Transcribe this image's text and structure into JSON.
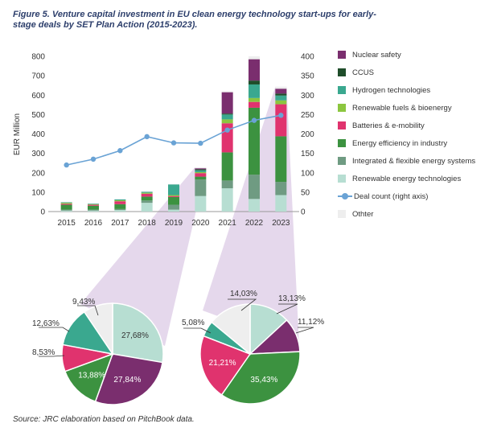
{
  "figure": {
    "title": "Figure 5. Venture capital investment in EU clean energy technology start-ups for early-stage deals by SET Plan Action (2015-2023).",
    "source": "Source: JRC elaboration based on PitchBook data."
  },
  "colors": {
    "Nuclear safety": "#7a2e6e",
    "CCUS": "#1f4d2a",
    "Hydrogen technologies": "#3aa88f",
    "Renewable fuels & bioenergy": "#8cc63f",
    "Batteries & e-mobility": "#e0336e",
    "Energy efficiency in industry": "#3c9240",
    "Integrated & flexible energy systems": "#6f9b82",
    "Renewable energy technologies": "#b7ded2",
    "Deal count (right axis)": "#6aa3d5",
    "Othter": "#eeeeee"
  },
  "chart_data": [
    {
      "type": "bar",
      "stacked": true,
      "ylabel": "EUR Million",
      "ylim": [
        0,
        800
      ],
      "y_ticks": [
        0,
        100,
        200,
        300,
        400,
        500,
        600,
        700,
        800
      ],
      "y2lim": [
        0,
        400
      ],
      "y2_ticks": [
        0,
        50,
        100,
        150,
        200,
        250,
        300,
        350,
        400
      ],
      "categories": [
        "2015",
        "2016",
        "2017",
        "2018",
        "2019",
        "2020",
        "2021",
        "2022",
        "2023"
      ],
      "series": [
        {
          "name": "Renewable energy technologies",
          "values": [
            5,
            5,
            8,
            45,
            10,
            80,
            120,
            65,
            85
          ]
        },
        {
          "name": "Integrated & flexible energy systems",
          "values": [
            5,
            5,
            5,
            12,
            25,
            85,
            40,
            125,
            68
          ]
        },
        {
          "name": "Energy efficiency in industry",
          "values": [
            25,
            20,
            25,
            20,
            40,
            15,
            145,
            345,
            235
          ]
        },
        {
          "name": "Batteries & e-mobility",
          "values": [
            5,
            5,
            15,
            15,
            5,
            18,
            150,
            30,
            165
          ]
        },
        {
          "name": "Renewable fuels & bioenergy",
          "values": [
            5,
            3,
            5,
            5,
            5,
            5,
            20,
            20,
            20
          ]
        },
        {
          "name": "Hydrogen technologies",
          "values": [
            3,
            3,
            5,
            5,
            55,
            10,
            25,
            70,
            25
          ]
        },
        {
          "name": "CCUS",
          "values": [
            0,
            0,
            0,
            0,
            0,
            5,
            5,
            20,
            10
          ]
        },
        {
          "name": "Nuclear safety",
          "values": [
            0,
            0,
            0,
            0,
            0,
            5,
            110,
            110,
            25
          ]
        },
        {
          "name": "Othter",
          "values": [
            2,
            2,
            2,
            3,
            2,
            5,
            5,
            15,
            10
          ]
        }
      ],
      "line_series": {
        "name": "Deal count (right axis)",
        "axis": "right",
        "values": [
          120,
          135,
          157,
          193,
          177,
          176,
          210,
          235,
          248
        ]
      }
    },
    {
      "type": "pie",
      "year": "2020",
      "slices": [
        {
          "name": "Renewable energy technologies",
          "value": 27.68,
          "label": "27,68%"
        },
        {
          "name": "Nuclear safety",
          "value": 27.84,
          "label": "27,84%"
        },
        {
          "name": "Energy efficiency in industry",
          "value": 13.88,
          "label": "13,88%"
        },
        {
          "name": "Batteries & e-mobility",
          "value": 8.53,
          "label": "8,53%"
        },
        {
          "name": "Hydrogen technologies",
          "value": 12.63,
          "label": "12,63%"
        },
        {
          "name": "Othter",
          "value": 9.43,
          "label": "9,43%"
        }
      ]
    },
    {
      "type": "pie",
      "year": "2023",
      "slices": [
        {
          "name": "Renewable energy technologies",
          "value": 13.13,
          "label": "13,13%"
        },
        {
          "name": "Nuclear safety",
          "value": 11.12,
          "label": "11,12%"
        },
        {
          "name": "Energy efficiency in industry",
          "value": 35.43,
          "label": "35,43%"
        },
        {
          "name": "Batteries & e-mobility",
          "value": 21.21,
          "label": "21,21%"
        },
        {
          "name": "Hydrogen technologies",
          "value": 5.08,
          "label": "5,08%"
        },
        {
          "name": "Othter",
          "value": 14.03,
          "label": "14,03%"
        }
      ]
    }
  ],
  "legend": [
    "Nuclear safety",
    "CCUS",
    "Hydrogen technologies",
    "Renewable fuels & bioenergy",
    "Batteries & e-mobility",
    "Energy efficiency in industry",
    "Integrated & flexible energy systems",
    "Renewable energy technologies",
    "Deal count (right axis)",
    "Othter"
  ]
}
